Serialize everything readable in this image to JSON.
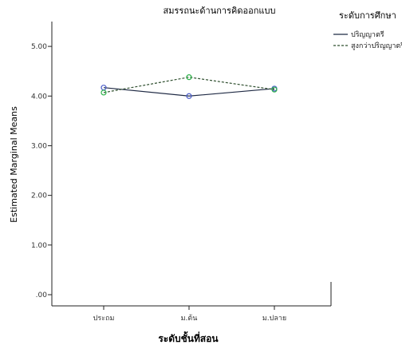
{
  "chart_data": {
    "type": "line",
    "title": "สมรรถนะด้านการคิดออกแบบ",
    "xlabel": "ระดับชั้นที่สอน",
    "ylabel": "Estimated Marginal Means",
    "categories": [
      "ประถม",
      "ม.ต้น",
      "ม.ปลาย"
    ],
    "ylim": [
      0,
      5.5
    ],
    "yticks": [
      0,
      1,
      2,
      3,
      4,
      5
    ],
    "ytick_labels": [
      ".00",
      "1.00",
      "2.00",
      "3.00",
      "4.00",
      "5.00"
    ],
    "legend_title": "ระดับการศึกษา",
    "legend_placement": "top-right, outside plot",
    "grid": false,
    "series": [
      {
        "name": "ปริญญาตรี",
        "values": [
          4.17,
          4.0,
          4.15
        ],
        "line_color": "#1f2a44",
        "line_style": "solid",
        "marker_color": "#4a5cc9"
      },
      {
        "name": "สูงกว่าปริญญาตรี",
        "values": [
          4.07,
          4.38,
          4.13
        ],
        "line_color": "#2f4f2f",
        "line_style": "dashed",
        "marker_color": "#2db34a"
      }
    ]
  }
}
